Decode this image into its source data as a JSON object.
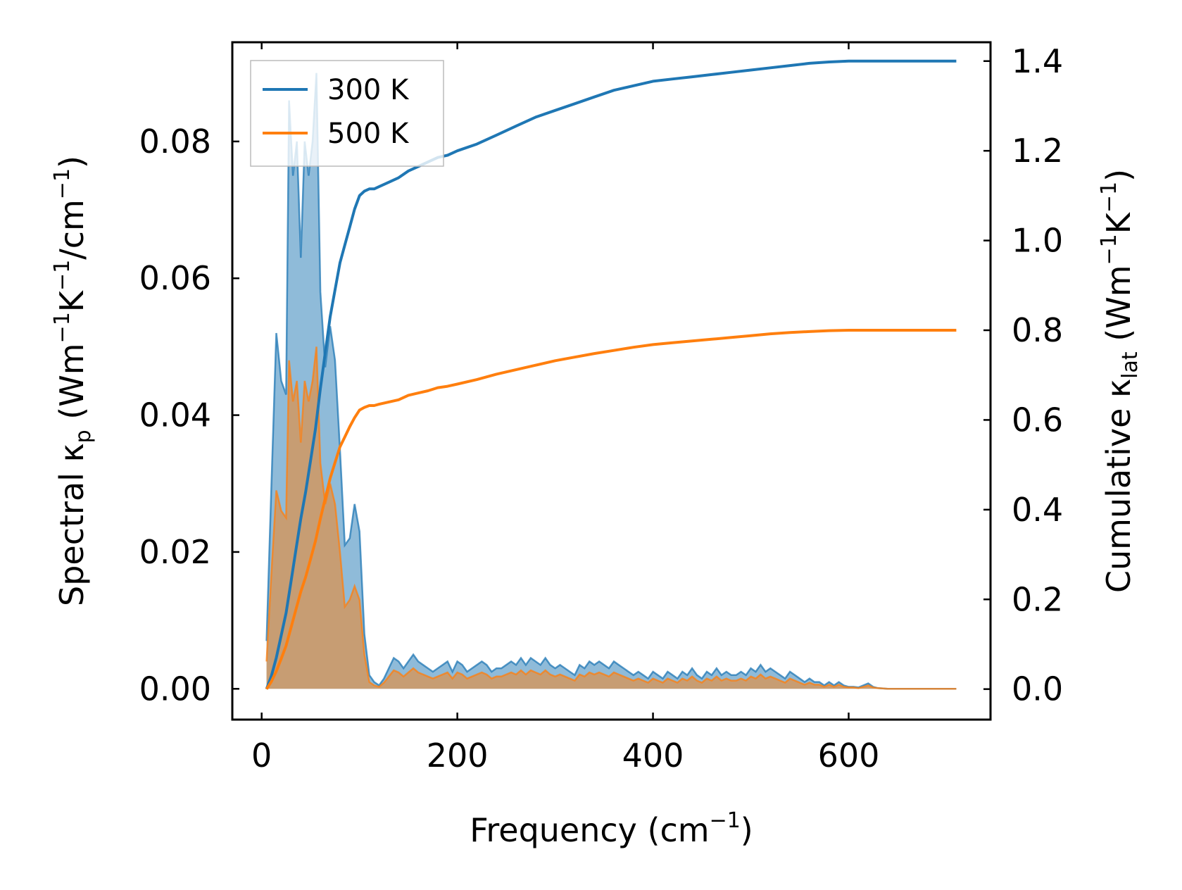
{
  "chart_data": {
    "type": "line",
    "xlabel": "Frequency (cm",
    "xlabel_sup": "−1",
    "xlabel_tail": ")",
    "ylabel_left": {
      "lead": "Spectral κ",
      "sub": "p",
      "unit_open": " (Wm",
      "sup1": "−1",
      "mid": "K",
      "sup2": "−1",
      "unit_mid": "/cm",
      "sup3": "−1",
      "close": ")"
    },
    "ylabel_right": {
      "lead": "Cumulative κ",
      "sub": "lat",
      "unit_open": " (Wm",
      "sup1": "−1",
      "mid": "K",
      "sup2": "−1",
      "close": ")"
    },
    "xlim": [
      -30,
      745
    ],
    "ylim_left": [
      -0.0045,
      0.0945
    ],
    "ylim_right": [
      -0.068,
      1.442
    ],
    "x_ticks": [
      0,
      200,
      400,
      600
    ],
    "x_tick_labels": [
      "0",
      "200",
      "400",
      "600"
    ],
    "y_left_ticks": [
      0.0,
      0.02,
      0.04,
      0.06,
      0.08
    ],
    "y_left_tick_labels": [
      "0.00",
      "0.02",
      "0.04",
      "0.06",
      "0.08"
    ],
    "y_right_ticks": [
      0.0,
      0.2,
      0.4,
      0.6,
      0.8,
      1.0,
      1.2,
      1.4
    ],
    "y_right_tick_labels": [
      "0.0",
      "0.2",
      "0.4",
      "0.6",
      "0.8",
      "1.0",
      "1.2",
      "1.4"
    ],
    "legend": {
      "position": "upper-left",
      "entries": [
        {
          "label": "300 K",
          "color": "#1f77b4"
        },
        {
          "label": "500 K",
          "color": "#ff7f0e"
        }
      ]
    },
    "spectral": [
      {
        "name": "300 K",
        "color": "#1f77b4",
        "x": [
          5,
          10,
          15,
          20,
          25,
          28,
          32,
          36,
          40,
          44,
          48,
          52,
          56,
          60,
          65,
          70,
          75,
          80,
          85,
          90,
          95,
          100,
          105,
          110,
          115,
          120,
          125,
          130,
          135,
          140,
          145,
          150,
          155,
          160,
          165,
          170,
          175,
          180,
          185,
          190,
          195,
          200,
          205,
          210,
          215,
          220,
          225,
          230,
          235,
          240,
          245,
          250,
          255,
          260,
          265,
          270,
          275,
          280,
          285,
          290,
          295,
          300,
          305,
          310,
          315,
          320,
          325,
          330,
          335,
          340,
          345,
          350,
          355,
          360,
          365,
          370,
          375,
          380,
          385,
          390,
          395,
          400,
          405,
          410,
          415,
          420,
          425,
          430,
          435,
          440,
          445,
          450,
          455,
          460,
          465,
          470,
          475,
          480,
          485,
          490,
          495,
          500,
          505,
          510,
          515,
          520,
          525,
          530,
          535,
          540,
          545,
          550,
          555,
          560,
          565,
          570,
          575,
          580,
          585,
          590,
          595,
          600,
          605,
          610,
          615,
          620,
          625,
          630,
          640,
          660,
          680,
          700,
          710
        ],
        "values": [
          0.007,
          0.03,
          0.052,
          0.045,
          0.043,
          0.086,
          0.075,
          0.08,
          0.063,
          0.08,
          0.075,
          0.08,
          0.09,
          0.058,
          0.047,
          0.053,
          0.048,
          0.035,
          0.021,
          0.022,
          0.027,
          0.023,
          0.008,
          0.002,
          0.001,
          0.0005,
          0.0015,
          0.003,
          0.0045,
          0.004,
          0.003,
          0.004,
          0.005,
          0.004,
          0.0035,
          0.003,
          0.0025,
          0.003,
          0.0035,
          0.004,
          0.0025,
          0.004,
          0.0035,
          0.0025,
          0.003,
          0.0035,
          0.004,
          0.0035,
          0.0025,
          0.003,
          0.003,
          0.0035,
          0.004,
          0.0035,
          0.0045,
          0.0035,
          0.0045,
          0.004,
          0.0035,
          0.0045,
          0.0035,
          0.003,
          0.0035,
          0.003,
          0.0025,
          0.002,
          0.0035,
          0.003,
          0.004,
          0.0035,
          0.004,
          0.0035,
          0.003,
          0.004,
          0.0035,
          0.003,
          0.0025,
          0.002,
          0.0025,
          0.002,
          0.0015,
          0.0025,
          0.002,
          0.0015,
          0.0025,
          0.002,
          0.0015,
          0.0025,
          0.002,
          0.003,
          0.002,
          0.0015,
          0.0025,
          0.002,
          0.003,
          0.002,
          0.0025,
          0.002,
          0.002,
          0.0025,
          0.002,
          0.003,
          0.0025,
          0.0035,
          0.0025,
          0.003,
          0.0025,
          0.002,
          0.0015,
          0.0025,
          0.002,
          0.0015,
          0.001,
          0.0015,
          0.001,
          0.001,
          0.0005,
          0.001,
          0.0005,
          0.001,
          0.0005,
          0.0003,
          0.0003,
          0.0002,
          0.0005,
          0.0008,
          0.0003,
          0.0001,
          0.0,
          0.0,
          0.0,
          0.0,
          0.0
        ]
      },
      {
        "name": "500 K",
        "color": "#ff7f0e",
        "x": [
          5,
          10,
          15,
          20,
          25,
          28,
          32,
          36,
          40,
          44,
          48,
          52,
          56,
          60,
          65,
          70,
          75,
          80,
          85,
          90,
          95,
          100,
          105,
          110,
          115,
          120,
          125,
          130,
          135,
          140,
          145,
          150,
          155,
          160,
          165,
          170,
          175,
          180,
          185,
          190,
          195,
          200,
          205,
          210,
          215,
          220,
          225,
          230,
          235,
          240,
          245,
          250,
          255,
          260,
          265,
          270,
          275,
          280,
          285,
          290,
          295,
          300,
          305,
          310,
          315,
          320,
          325,
          330,
          335,
          340,
          345,
          350,
          355,
          360,
          365,
          370,
          375,
          380,
          385,
          390,
          395,
          400,
          405,
          410,
          415,
          420,
          425,
          430,
          435,
          440,
          445,
          450,
          455,
          460,
          465,
          470,
          475,
          480,
          485,
          490,
          495,
          500,
          505,
          510,
          515,
          520,
          525,
          530,
          535,
          540,
          545,
          550,
          555,
          560,
          565,
          570,
          575,
          580,
          585,
          590,
          595,
          600,
          605,
          610,
          615,
          620,
          625,
          630,
          640,
          660,
          680,
          700,
          710
        ],
        "values": [
          0.004,
          0.017,
          0.029,
          0.026,
          0.025,
          0.048,
          0.042,
          0.045,
          0.036,
          0.045,
          0.042,
          0.045,
          0.05,
          0.033,
          0.027,
          0.03,
          0.027,
          0.02,
          0.012,
          0.013,
          0.015,
          0.013,
          0.005,
          0.001,
          0.0005,
          0.0003,
          0.0009,
          0.0018,
          0.0027,
          0.0024,
          0.0018,
          0.0024,
          0.003,
          0.0024,
          0.0021,
          0.0018,
          0.0015,
          0.0018,
          0.0021,
          0.0024,
          0.0015,
          0.0024,
          0.0021,
          0.0015,
          0.0018,
          0.0021,
          0.0024,
          0.0021,
          0.0015,
          0.0018,
          0.0018,
          0.0021,
          0.0024,
          0.0021,
          0.0027,
          0.0021,
          0.0027,
          0.0024,
          0.0021,
          0.0027,
          0.0021,
          0.0018,
          0.0021,
          0.0018,
          0.0015,
          0.0012,
          0.0021,
          0.0018,
          0.0024,
          0.0021,
          0.0024,
          0.0021,
          0.0018,
          0.0024,
          0.0021,
          0.0018,
          0.0015,
          0.0012,
          0.0015,
          0.0012,
          0.0009,
          0.0015,
          0.0012,
          0.0009,
          0.0015,
          0.0012,
          0.0009,
          0.0015,
          0.0012,
          0.0018,
          0.0012,
          0.0009,
          0.0015,
          0.0012,
          0.0018,
          0.0012,
          0.0015,
          0.0012,
          0.0012,
          0.0015,
          0.0012,
          0.0018,
          0.0015,
          0.0021,
          0.0015,
          0.0018,
          0.0015,
          0.0012,
          0.0009,
          0.0015,
          0.0012,
          0.0009,
          0.0006,
          0.0009,
          0.0006,
          0.0006,
          0.0003,
          0.0006,
          0.0003,
          0.0006,
          0.0003,
          0.0002,
          0.0002,
          0.0001,
          0.0003,
          0.0005,
          0.0002,
          0.0001,
          0.0,
          0.0,
          0.0,
          0.0,
          0.0
        ]
      }
    ],
    "cumulative": [
      {
        "name": "300 K",
        "color": "#1f77b4",
        "x": [
          5,
          10,
          15,
          20,
          25,
          30,
          35,
          40,
          45,
          50,
          55,
          60,
          65,
          70,
          75,
          80,
          85,
          90,
          95,
          100,
          105,
          110,
          115,
          120,
          130,
          140,
          150,
          160,
          170,
          180,
          190,
          200,
          220,
          240,
          260,
          280,
          300,
          320,
          340,
          360,
          380,
          400,
          420,
          440,
          460,
          480,
          500,
          520,
          540,
          560,
          580,
          600,
          620,
          640,
          660,
          680,
          700,
          710
        ],
        "values": [
          0.0,
          0.03,
          0.07,
          0.12,
          0.17,
          0.24,
          0.31,
          0.38,
          0.44,
          0.51,
          0.58,
          0.67,
          0.75,
          0.83,
          0.89,
          0.95,
          0.99,
          1.03,
          1.07,
          1.1,
          1.11,
          1.115,
          1.115,
          1.12,
          1.13,
          1.14,
          1.155,
          1.165,
          1.175,
          1.185,
          1.19,
          1.2,
          1.215,
          1.235,
          1.255,
          1.275,
          1.29,
          1.305,
          1.32,
          1.335,
          1.345,
          1.355,
          1.36,
          1.365,
          1.37,
          1.375,
          1.38,
          1.385,
          1.39,
          1.395,
          1.398,
          1.4,
          1.4,
          1.4,
          1.4,
          1.4,
          1.4,
          1.4
        ]
      },
      {
        "name": "500 K",
        "color": "#ff7f0e",
        "x": [
          5,
          10,
          15,
          20,
          25,
          30,
          35,
          40,
          45,
          50,
          55,
          60,
          65,
          70,
          75,
          80,
          85,
          90,
          95,
          100,
          105,
          110,
          115,
          120,
          130,
          140,
          150,
          160,
          170,
          180,
          190,
          200,
          220,
          240,
          260,
          280,
          300,
          320,
          340,
          360,
          380,
          400,
          420,
          440,
          460,
          480,
          500,
          520,
          540,
          560,
          580,
          600,
          620,
          640,
          660,
          680,
          700,
          710
        ],
        "values": [
          0.0,
          0.017,
          0.04,
          0.068,
          0.097,
          0.137,
          0.177,
          0.217,
          0.25,
          0.29,
          0.33,
          0.38,
          0.425,
          0.47,
          0.505,
          0.54,
          0.562,
          0.585,
          0.605,
          0.622,
          0.628,
          0.632,
          0.632,
          0.635,
          0.64,
          0.645,
          0.655,
          0.66,
          0.665,
          0.672,
          0.675,
          0.68,
          0.69,
          0.702,
          0.712,
          0.722,
          0.732,
          0.74,
          0.748,
          0.755,
          0.762,
          0.768,
          0.772,
          0.776,
          0.78,
          0.784,
          0.788,
          0.792,
          0.795,
          0.797,
          0.799,
          0.8,
          0.8,
          0.8,
          0.8,
          0.8,
          0.8,
          0.8
        ]
      }
    ]
  }
}
